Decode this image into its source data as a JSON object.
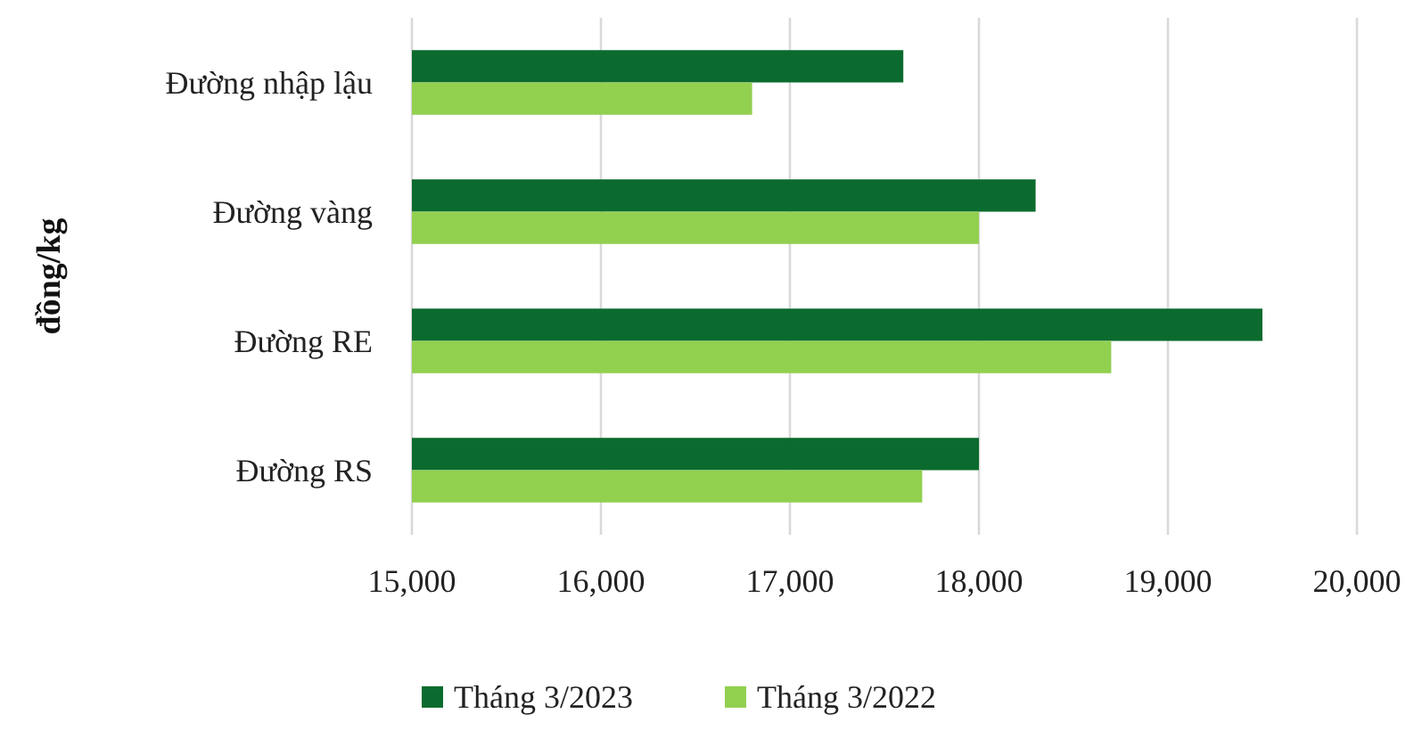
{
  "chart_data": {
    "type": "bar",
    "orientation": "horizontal",
    "ylabel": "đồng/kg",
    "categories": [
      "Đường nhập lậu",
      "Đường vàng",
      "Đường RE",
      "Đường RS"
    ],
    "series": [
      {
        "name": "Tháng 3/2023",
        "color": "#0b6b2e",
        "values": [
          17600,
          18300,
          19500,
          18000
        ]
      },
      {
        "name": "Tháng 3/2022",
        "color": "#92d050",
        "values": [
          16800,
          18000,
          18700,
          17700
        ]
      }
    ],
    "xlim": [
      15000,
      20000
    ],
    "xticks": [
      {
        "value": 15000,
        "label": "15,000"
      },
      {
        "value": 16000,
        "label": "16,000"
      },
      {
        "value": 17000,
        "label": "17,000"
      },
      {
        "value": 18000,
        "label": "18,000"
      },
      {
        "value": 19000,
        "label": "19,000"
      },
      {
        "value": 20000,
        "label": "20,000"
      }
    ],
    "grid": "x",
    "legend": "bottom"
  }
}
